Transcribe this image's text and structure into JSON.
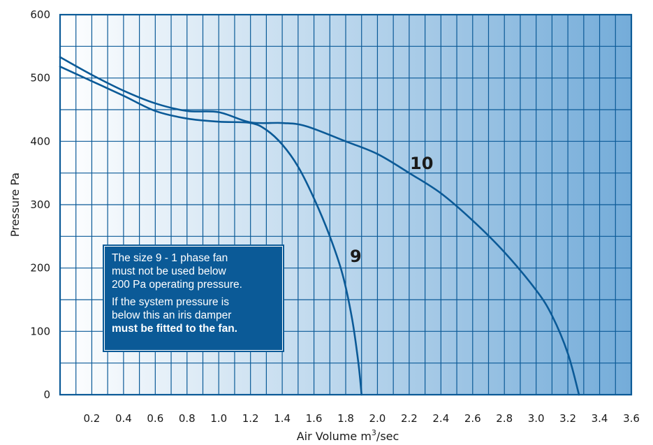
{
  "chart_data": {
    "type": "line",
    "xlabel": "Air Volume m",
    "xlabel_sup": "3",
    "xlabel_suffix": "/sec",
    "ylabel": "Pressure Pa",
    "xlim": [
      0,
      3.6
    ],
    "ylim": [
      0,
      600
    ],
    "grid": true,
    "x_ticks": [
      "0.2",
      "0.4",
      "0.6",
      "0.8",
      "1.0",
      "1.2",
      "1.4",
      "1.6",
      "1.8",
      "2.0",
      "2.2",
      "2.4",
      "2.6",
      "2.8",
      "3.0",
      "3.2",
      "3.4",
      "3.6"
    ],
    "y_ticks": [
      "0",
      "100",
      "200",
      "300",
      "400",
      "500",
      "600"
    ],
    "colors": {
      "line": "#0b5a97",
      "grid": "#0b5a97",
      "bg_left": "#ffffff",
      "bg_right": "#74acd9"
    },
    "series": [
      {
        "name": "9",
        "points": [
          [
            0,
            518
          ],
          [
            0.2,
            495
          ],
          [
            0.4,
            472
          ],
          [
            0.6,
            448
          ],
          [
            0.8,
            436
          ],
          [
            1.0,
            431
          ],
          [
            1.2,
            429
          ],
          [
            1.3,
            418
          ],
          [
            1.4,
            395
          ],
          [
            1.5,
            360
          ],
          [
            1.6,
            310
          ],
          [
            1.7,
            250
          ],
          [
            1.78,
            190
          ],
          [
            1.84,
            120
          ],
          [
            1.88,
            50
          ],
          [
            1.9,
            0
          ]
        ]
      },
      {
        "name": "10",
        "points": [
          [
            0,
            533
          ],
          [
            0.2,
            505
          ],
          [
            0.4,
            480
          ],
          [
            0.6,
            460
          ],
          [
            0.8,
            448
          ],
          [
            1.0,
            446
          ],
          [
            1.2,
            430
          ],
          [
            1.4,
            429
          ],
          [
            1.55,
            424
          ],
          [
            1.8,
            400
          ],
          [
            2.0,
            380
          ],
          [
            2.2,
            350
          ],
          [
            2.4,
            318
          ],
          [
            2.6,
            275
          ],
          [
            2.8,
            225
          ],
          [
            3.0,
            165
          ],
          [
            3.1,
            125
          ],
          [
            3.2,
            65
          ],
          [
            3.27,
            0
          ]
        ]
      }
    ]
  },
  "note": {
    "line1": "The size 9 - 1 phase fan",
    "line2": "must not be used below",
    "line3": "200 Pa operating pressure.",
    "line4": "If the system pressure is",
    "line5": "below this an iris damper",
    "line6": "must be fitted to the fan."
  }
}
